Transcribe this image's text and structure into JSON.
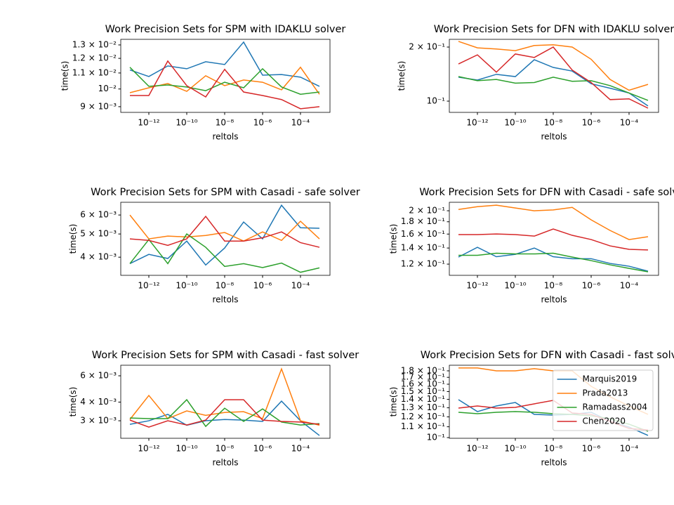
{
  "chart_data": [
    {
      "type": "line",
      "title": "Work Precision Sets for SPM with IDAKLU solver",
      "xlabel": "reltols",
      "ylabel": "time(s)",
      "xscale": "log",
      "yscale": "log",
      "x": [
        1e-13,
        1e-12,
        1e-11,
        1e-10,
        1e-09,
        1e-08,
        1e-07,
        1e-06,
        1e-05,
        0.0001,
        0.001
      ],
      "xlim": [
        3.3e-14,
        0.0036
      ],
      "xticks": [
        {
          "value": 1e-12,
          "label": "10⁻¹²"
        },
        {
          "value": 1e-10,
          "label": "10⁻¹⁰"
        },
        {
          "value": 1e-08,
          "label": "10⁻⁸"
        },
        {
          "value": 1e-06,
          "label": "10⁻⁶"
        },
        {
          "value": 0.0001,
          "label": "10⁻⁴"
        }
      ],
      "ylim": [
        0.0087,
        0.01344
      ],
      "yticks": [
        {
          "value": 0.009,
          "label": "9 × 10⁻³"
        },
        {
          "value": 0.01,
          "label": "10⁻²"
        },
        {
          "value": 0.011,
          "label": "1.1 × 10⁻²"
        },
        {
          "value": 0.012,
          "label": "1.2 × 10⁻²"
        },
        {
          "value": 0.013,
          "label": "1.3 × 10⁻²"
        }
      ],
      "series": [
        {
          "color": "#1f77b4",
          "values": [
            0.0112,
            0.01077,
            0.01147,
            0.01128,
            0.01176,
            0.01157,
            0.01322,
            0.01086,
            0.0109,
            0.01073,
            0.01016
          ]
        },
        {
          "color": "#ff7f0e",
          "values": [
            0.00978,
            0.01007,
            0.01033,
            0.00986,
            0.01082,
            0.0102,
            0.01055,
            0.01041,
            0.00995,
            0.01138,
            0.00969
          ]
        },
        {
          "color": "#2ca02c",
          "values": [
            0.01138,
            0.01016,
            0.01024,
            0.01012,
            0.0099,
            0.01041,
            0.01007,
            0.01128,
            0.01012,
            0.00969,
            0.00982
          ]
        },
        {
          "color": "#d62728",
          "values": [
            0.00962,
            0.00962,
            0.01181,
            0.0102,
            0.00954,
            0.01124,
            0.00982,
            0.00962,
            0.00939,
            0.00889,
            0.009
          ]
        }
      ]
    },
    {
      "type": "line",
      "title": "Work Precision Sets for DFN with IDAKLU solver",
      "xlabel": "reltols",
      "ylabel": "time(s)",
      "xscale": "log",
      "yscale": "log",
      "x": [
        1e-13,
        1e-12,
        1e-11,
        1e-10,
        1e-09,
        1e-08,
        1e-07,
        1e-06,
        1e-05,
        0.0001,
        0.001
      ],
      "xlim": [
        3.3e-14,
        0.0036
      ],
      "xticks": [
        {
          "value": 1e-12,
          "label": "10⁻¹²"
        },
        {
          "value": 1e-10,
          "label": "10⁻¹⁰"
        },
        {
          "value": 1e-08,
          "label": "10⁻⁸"
        },
        {
          "value": 1e-06,
          "label": "10⁻⁶"
        },
        {
          "value": 0.0001,
          "label": "10⁻⁴"
        }
      ],
      "ylim": [
        0.0866,
        0.2208
      ],
      "yticks": [
        {
          "value": 0.1,
          "label": "10⁻¹"
        },
        {
          "value": 0.2,
          "label": "2 × 10⁻¹"
        }
      ],
      "series": [
        {
          "color": "#1f77b4",
          "values": [
            0.136,
            0.131,
            0.141,
            0.137,
            0.17,
            0.154,
            0.147,
            0.125,
            0.118,
            0.111,
            0.094
          ]
        },
        {
          "color": "#ff7f0e",
          "values": [
            0.215,
            0.198,
            0.195,
            0.191,
            0.204,
            0.206,
            0.2,
            0.171,
            0.132,
            0.115,
            0.124
          ]
        },
        {
          "color": "#2ca02c",
          "values": [
            0.137,
            0.13,
            0.132,
            0.126,
            0.127,
            0.136,
            0.129,
            0.13,
            0.122,
            0.111,
            0.101
          ]
        },
        {
          "color": "#d62728",
          "values": [
            0.161,
            0.181,
            0.145,
            0.183,
            0.175,
            0.2,
            0.149,
            0.127,
            0.102,
            0.103,
            0.0914
          ]
        }
      ]
    },
    {
      "type": "line",
      "title": "Work Precision Sets for SPM with Casadi - safe solver",
      "xlabel": "reltols",
      "ylabel": "time(s)",
      "xscale": "log",
      "yscale": "log",
      "x": [
        1e-13,
        1e-12,
        1e-11,
        1e-10,
        1e-09,
        1e-08,
        1e-07,
        1e-06,
        1e-05,
        0.0001,
        0.001
      ],
      "xlim": [
        3.3e-14,
        0.0036
      ],
      "xticks": [
        {
          "value": 1e-12,
          "label": "10⁻¹²"
        },
        {
          "value": 1e-10,
          "label": "10⁻¹⁰"
        },
        {
          "value": 1e-08,
          "label": "10⁻⁸"
        },
        {
          "value": 1e-06,
          "label": "10⁻⁶"
        },
        {
          "value": 0.0001,
          "label": "10⁻⁴"
        }
      ],
      "ylim": [
        0.00336,
        0.00678
      ],
      "yticks": [
        {
          "value": 0.004,
          "label": "4 × 10⁻³"
        },
        {
          "value": 0.005,
          "label": "5 × 10⁻³"
        },
        {
          "value": 0.006,
          "label": "6 × 10⁻³"
        }
      ],
      "series": [
        {
          "color": "#1f77b4",
          "values": [
            0.00376,
            0.00411,
            0.00395,
            0.00467,
            0.00371,
            0.00437,
            0.00561,
            0.00477,
            0.00659,
            0.00531,
            0.00528
          ]
        },
        {
          "color": "#ff7f0e",
          "values": [
            0.006,
            0.00477,
            0.0049,
            0.00486,
            0.00493,
            0.00507,
            0.00467,
            0.0051,
            0.0047,
            0.00565,
            0.00477
          ]
        },
        {
          "color": "#2ca02c",
          "values": [
            0.00376,
            0.00474,
            0.00376,
            0.005,
            0.0044,
            0.00366,
            0.00376,
            0.00362,
            0.00378,
            0.00346,
            0.00361
          ]
        },
        {
          "color": "#d62728",
          "values": [
            0.00477,
            0.0047,
            0.00448,
            0.00477,
            0.00592,
            0.00467,
            0.00467,
            0.00482,
            0.0051,
            0.0046,
            0.0044
          ]
        }
      ]
    },
    {
      "type": "line",
      "title": "Work Precision Sets for DFN with Casadi - safe solver",
      "xlabel": "reltols",
      "ylabel": "time(s)",
      "xscale": "log",
      "yscale": "log",
      "x": [
        1e-13,
        1e-12,
        1e-11,
        1e-10,
        1e-09,
        1e-08,
        1e-07,
        1e-06,
        1e-05,
        0.0001,
        0.001
      ],
      "xlim": [
        3.3e-14,
        0.0036
      ],
      "xticks": [
        {
          "value": 1e-12,
          "label": "10⁻¹²"
        },
        {
          "value": 1e-10,
          "label": "10⁻¹⁰"
        },
        {
          "value": 1e-08,
          "label": "10⁻⁸"
        },
        {
          "value": 1e-06,
          "label": "10⁻⁶"
        },
        {
          "value": 0.0001,
          "label": "10⁻⁴"
        }
      ],
      "ylim": [
        0.1078,
        0.2169
      ],
      "yticks": [
        {
          "value": 0.12,
          "label": "1.2 × 10⁻¹"
        },
        {
          "value": 0.14,
          "label": "1.4 × 10⁻¹"
        },
        {
          "value": 0.16,
          "label": "1.6 × 10⁻¹"
        },
        {
          "value": 0.18,
          "label": "1.8 × 10⁻¹"
        },
        {
          "value": 0.2,
          "label": "2 × 10⁻¹"
        }
      ],
      "series": [
        {
          "color": "#1f77b4",
          "values": [
            0.1284,
            0.141,
            0.1288,
            0.1318,
            0.14,
            0.1288,
            0.1264,
            0.1264,
            0.1208,
            0.1176,
            0.1122
          ]
        },
        {
          "color": "#ff7f0e",
          "values": [
            0.2024,
            0.208,
            0.211,
            0.2054,
            0.2,
            0.2016,
            0.2066,
            0.1833,
            0.1656,
            0.1518,
            0.156
          ]
        },
        {
          "color": "#2ca02c",
          "values": [
            0.1306,
            0.1306,
            0.1332,
            0.1323,
            0.1323,
            0.1332,
            0.1284,
            0.1241,
            0.1192,
            0.1152,
            0.1115
          ]
        },
        {
          "color": "#d62728",
          "values": [
            0.1592,
            0.1592,
            0.1601,
            0.1592,
            0.1569,
            0.1679,
            0.1581,
            0.1518,
            0.1429,
            0.1382,
            0.1374
          ]
        }
      ]
    },
    {
      "type": "line",
      "title": "Work Precision Sets for SPM with Casadi - fast solver",
      "xlabel": "reltols",
      "ylabel": "time(s)",
      "xscale": "log",
      "yscale": "log",
      "x": [
        1e-13,
        1e-12,
        1e-11,
        1e-10,
        1e-09,
        1e-08,
        1e-07,
        1e-06,
        1e-05,
        0.0001,
        0.001
      ],
      "xlim": [
        3.3e-14,
        0.0036
      ],
      "xticks": [
        {
          "value": 1e-12,
          "label": "10⁻¹²"
        },
        {
          "value": 1e-10,
          "label": "10⁻¹⁰"
        },
        {
          "value": 1e-08,
          "label": "10⁻⁸"
        },
        {
          "value": 1e-06,
          "label": "10⁻⁶"
        },
        {
          "value": 0.0001,
          "label": "10⁻⁴"
        }
      ],
      "ylim": [
        0.00229,
        0.00706
      ],
      "yticks": [
        {
          "value": 0.003,
          "label": "3 × 10⁻³"
        },
        {
          "value": 0.004,
          "label": "4 × 10⁻³"
        },
        {
          "value": 0.006,
          "label": "6 × 10⁻³"
        }
      ],
      "series": [
        {
          "color": "#1f77b4",
          "values": [
            0.00284,
            0.003,
            0.00331,
            0.0028,
            0.003,
            0.00306,
            0.00303,
            0.00297,
            0.00406,
            0.003,
            0.00239
          ]
        },
        {
          "color": "#ff7f0e",
          "values": [
            0.00306,
            0.00443,
            0.0031,
            0.00349,
            0.00326,
            0.00341,
            0.00345,
            0.0031,
            0.00667,
            0.003,
            0.0028
          ]
        },
        {
          "color": "#2ca02c",
          "values": [
            0.00313,
            0.0031,
            0.0031,
            0.00415,
            0.00275,
            0.00364,
            0.00297,
            0.0036,
            0.00294,
            0.00281,
            0.00287
          ]
        },
        {
          "color": "#d62728",
          "values": [
            0.00303,
            0.00272,
            0.003,
            0.00281,
            0.00303,
            0.00415,
            0.00415,
            0.00303,
            0.00297,
            0.00294,
            0.00284
          ]
        }
      ]
    },
    {
      "type": "line",
      "title": "Work Precision Sets for DFN with Casadi - fast solver",
      "xlabel": "reltols",
      "ylabel": "time(s)",
      "xscale": "log",
      "yscale": "log",
      "x": [
        1e-13,
        1e-12,
        1e-11,
        1e-10,
        1e-09,
        1e-08,
        1e-07,
        1e-06,
        1e-05,
        0.0001,
        0.001
      ],
      "xlim": [
        3.3e-14,
        0.0036
      ],
      "xticks": [
        {
          "value": 1e-12,
          "label": "10⁻¹²"
        },
        {
          "value": 1e-10,
          "label": "10⁻¹⁰"
        },
        {
          "value": 1e-08,
          "label": "10⁻⁸"
        },
        {
          "value": 1e-06,
          "label": "10⁻⁶"
        },
        {
          "value": 0.0001,
          "label": "10⁻⁴"
        }
      ],
      "ylim": [
        0.0994,
        0.1891
      ],
      "yticks": [
        {
          "value": 0.1,
          "label": "10⁻¹"
        },
        {
          "value": 0.11,
          "label": "1.1 × 10⁻¹"
        },
        {
          "value": 0.12,
          "label": "1.2 × 10⁻¹"
        },
        {
          "value": 0.13,
          "label": "1.3 × 10⁻¹"
        },
        {
          "value": 0.14,
          "label": "1.4 × 10⁻¹"
        },
        {
          "value": 0.15,
          "label": "1.5 × 10⁻¹"
        },
        {
          "value": 0.16,
          "label": "1.6 × 10⁻¹"
        },
        {
          "value": 0.17,
          "label": "1.7 × 10⁻¹"
        },
        {
          "value": 0.18,
          "label": "1.8 × 10⁻¹"
        }
      ],
      "legend": "upper right",
      "series": [
        {
          "name": "Marquis2019",
          "color": "#1f77b4",
          "values": [
            0.1397,
            0.1257,
            0.1321,
            0.1362,
            0.1227,
            0.1219,
            0.1227,
            0.125,
            0.1153,
            0.1097,
            0.1019
          ]
        },
        {
          "name": "Prada2013",
          "color": "#ff7f0e",
          "values": [
            0.1846,
            0.1846,
            0.18,
            0.18,
            0.1835,
            0.18,
            0.18,
            0.1571,
            0.1432,
            0.1321,
            0.1227
          ]
        },
        {
          "name": "Ramadass2004",
          "color": "#2ca02c",
          "values": [
            0.125,
            0.1234,
            0.125,
            0.1257,
            0.125,
            0.1234,
            0.1227,
            0.1211,
            0.1182,
            0.1125,
            0.1057
          ]
        },
        {
          "name": "Chen2020",
          "color": "#d62728",
          "values": [
            0.1297,
            0.1321,
            0.1297,
            0.1305,
            0.1346,
            0.1388,
            0.1242,
            0.1227,
            0.1153,
            0.1084,
            0.107
          ]
        }
      ]
    }
  ]
}
